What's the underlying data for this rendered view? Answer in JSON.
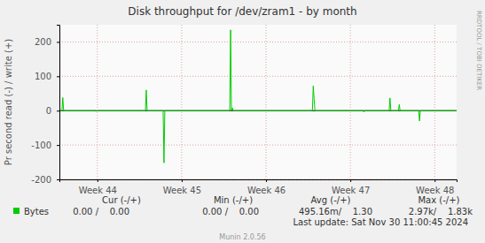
{
  "chart_data": {
    "type": "line",
    "title": "Disk throughput for /dev/zram1 - by month",
    "y_label": "Pr second read (-) / write (+)",
    "x": [
      43.55,
      43.58,
      43.59,
      43.6,
      43.98,
      43.99,
      44.0,
      44.57,
      44.58,
      44.59,
      44.78,
      44.79,
      44.8,
      45.57,
      45.58,
      45.59,
      45.6,
      45.61,
      46.55,
      46.56,
      46.57,
      46.58,
      47.15,
      47.16,
      47.17,
      47.46,
      47.47,
      47.48,
      47.57,
      47.58,
      47.59,
      47.81,
      47.82,
      47.83,
      48.26
    ],
    "series": [
      {
        "name": "Bytes",
        "color": "#00cc00",
        "values": [
          0,
          0,
          38,
          0,
          0,
          -2,
          0,
          0,
          60,
          0,
          0,
          -152,
          0,
          0,
          235,
          0,
          8,
          0,
          0,
          72,
          35,
          0,
          0,
          -4,
          0,
          0,
          37,
          0,
          0,
          18,
          0,
          0,
          -30,
          0,
          0
        ]
      }
    ],
    "xlim": [
      43.55,
      48.26
    ],
    "xticks": [
      {
        "value": 44,
        "label": "Week 44"
      },
      {
        "value": 45,
        "label": "Week 45"
      },
      {
        "value": 46,
        "label": "Week 46"
      },
      {
        "value": 47,
        "label": "Week 47"
      },
      {
        "value": 48,
        "label": "Week 48"
      }
    ],
    "ylim": [
      -200,
      250
    ],
    "yticks": [
      -200,
      -100,
      0,
      100,
      200
    ],
    "grid": true,
    "legend": "bottom-left",
    "annotations": [
      "Cur (-/+)",
      "Min (-/+)",
      "Avg (-/+)",
      "Max (-/+)",
      "0.00 /    0.00",
      "0.00 /    0.00",
      "495.16m/    1.30",
      "2.97k/    1.83k",
      "Last update: Sat Nov 30 11:00:45 2024",
      "Munin 2.0.56",
      "RRDTOOL / TOBI OETIKER"
    ]
  }
}
